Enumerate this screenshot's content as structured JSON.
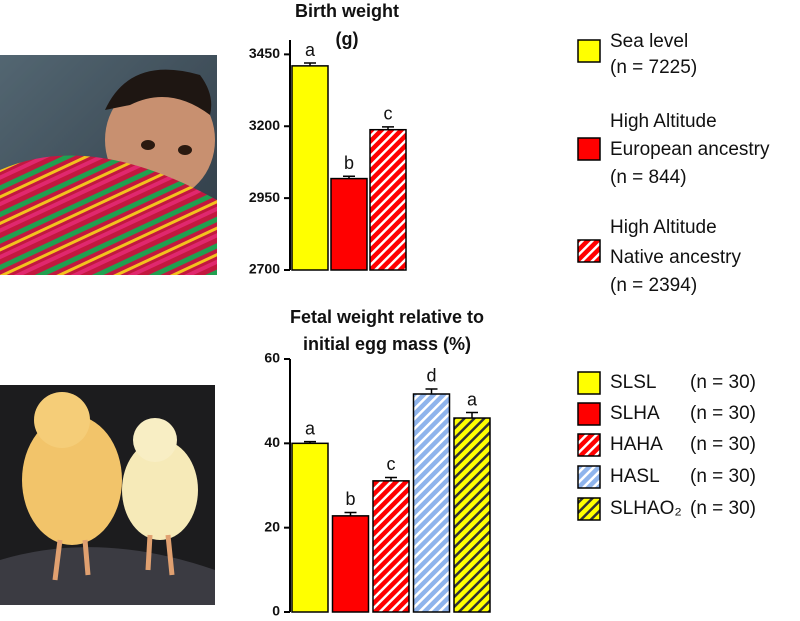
{
  "chart_data": [
    {
      "type": "bar",
      "title": [
        "Birth weight",
        "(g)"
      ],
      "ylim": [
        2700,
        3500
      ],
      "yticks": [
        2700,
        2950,
        3200,
        3450
      ],
      "series": [
        {
          "name": [
            "Sea level",
            "(n = 7225)"
          ],
          "color": "#ffff00",
          "hatch": null,
          "values": [
            3410
          ],
          "errors": [
            10
          ],
          "label": "a"
        },
        {
          "name": [
            "High Altitude",
            "European ancestry",
            "(n = 844)"
          ],
          "color": "#ff0000",
          "hatch": null,
          "values": [
            3018
          ],
          "errors": [
            8
          ],
          "label": "b"
        },
        {
          "name": [
            "High Altitude",
            "Native ancestry",
            "(n = 2394)"
          ],
          "color": "#ff0000",
          "hatch": "#ffffff",
          "values": [
            3188
          ],
          "errors": [
            10
          ],
          "label": "c"
        }
      ]
    },
    {
      "type": "bar",
      "title": [
        "Fetal weight relative to",
        "initial egg mass (%)"
      ],
      "ylim": [
        0,
        60
      ],
      "yticks": [
        0,
        20,
        40,
        60
      ],
      "series": [
        {
          "name": "SLSL",
          "n": "(n = 30)",
          "color": "#ffff00",
          "hatch": null,
          "values": [
            40
          ],
          "errors": [
            0.4
          ],
          "label": "a"
        },
        {
          "name": "SLHA",
          "n": "(n = 30)",
          "color": "#ff0000",
          "hatch": null,
          "values": [
            22.8
          ],
          "errors": [
            0.8
          ],
          "label": "b"
        },
        {
          "name": "HAHA",
          "n": "(n = 30)",
          "color": "#ff0000",
          "hatch": "#ffffff",
          "values": [
            31.1
          ],
          "errors": [
            0.8
          ],
          "label": "c"
        },
        {
          "name": "HASL",
          "n": "(n = 30)",
          "color": "#8fb4ec",
          "hatch": "#ffffff",
          "values": [
            51.7
          ],
          "errors": [
            1.2
          ],
          "label": "d"
        },
        {
          "name": "SLHAO₂",
          "n": "(n = 30)",
          "color": "#ffff00",
          "hatch": "#333333",
          "values": [
            46
          ],
          "errors": [
            1.3
          ],
          "label": "a"
        }
      ]
    }
  ]
}
